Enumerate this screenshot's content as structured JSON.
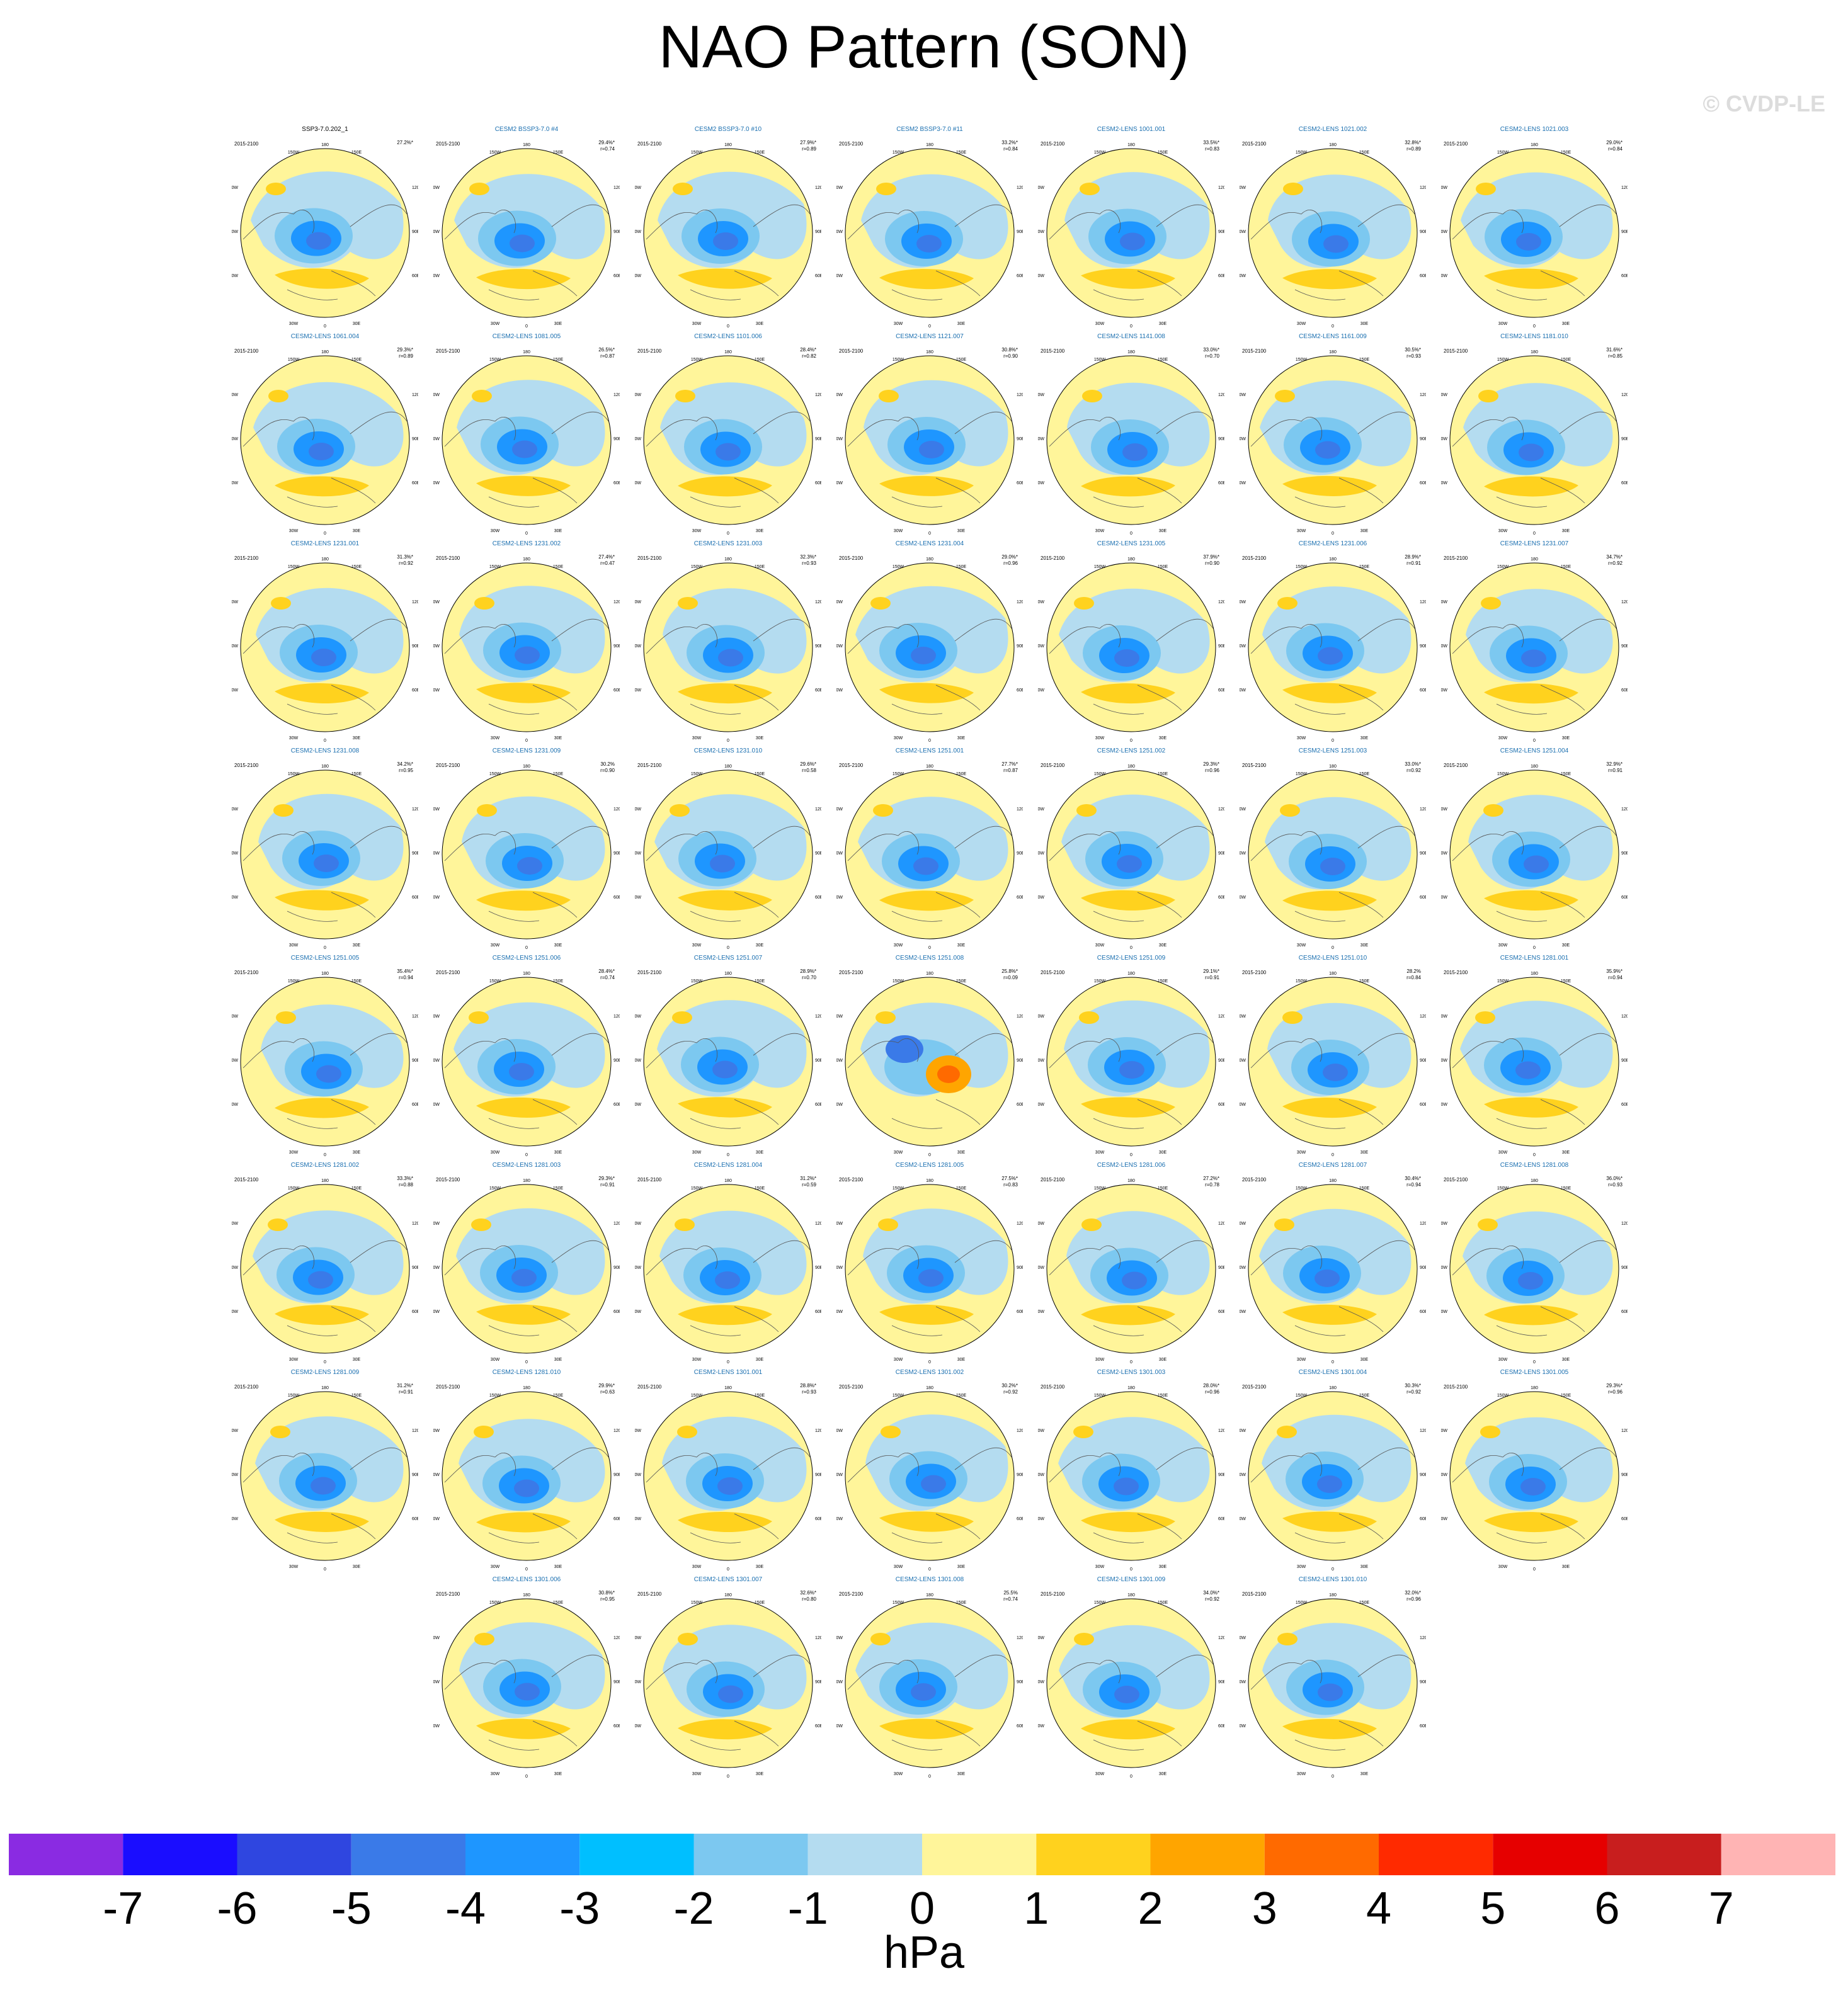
{
  "title": "NAO Pattern (SON)",
  "copyright": "© CVDP-LE",
  "period": "2015-2100",
  "map_labels": [
    "180",
    "150W",
    "150E",
    "120W",
    "120E",
    "90W",
    "90E",
    "60W",
    "60E",
    "30W",
    "30E",
    "0"
  ],
  "panels": [
    {
      "name": "SSP3-7.0.202_1",
      "pct": "27.2%*",
      "r": ""
    },
    {
      "name": "CESM2 BSSP3-7.0 #4",
      "pct": "29.4%*",
      "r": "r=0.74"
    },
    {
      "name": "CESM2 BSSP3-7.0 #10",
      "pct": "27.9%*",
      "r": "r=0.89"
    },
    {
      "name": "CESM2 BSSP3-7.0 #11",
      "pct": "33.2%*",
      "r": "r=0.84"
    },
    {
      "name": "CESM2-LENS 1001.001",
      "pct": "33.5%*",
      "r": "r=0.83"
    },
    {
      "name": "CESM2-LENS 1021.002",
      "pct": "32.8%*",
      "r": "r=0.89"
    },
    {
      "name": "CESM2-LENS 1021.003",
      "pct": "29.0%*",
      "r": "r=0.84"
    },
    {
      "name": "CESM2-LENS 1061.004",
      "pct": "29.3%*",
      "r": "r=0.89"
    },
    {
      "name": "CESM2-LENS 1081.005",
      "pct": "26.5%*",
      "r": "r=0.87"
    },
    {
      "name": "CESM2-LENS 1101.006",
      "pct": "28.4%*",
      "r": "r=0.82"
    },
    {
      "name": "CESM2-LENS 1121.007",
      "pct": "30.8%*",
      "r": "r=0.90"
    },
    {
      "name": "CESM2-LENS 1141.008",
      "pct": "33.0%*",
      "r": "r=0.70"
    },
    {
      "name": "CESM2-LENS 1161.009",
      "pct": "30.5%*",
      "r": "r=0.93"
    },
    {
      "name": "CESM2-LENS 1181.010",
      "pct": "31.6%*",
      "r": "r=0.85"
    },
    {
      "name": "CESM2-LENS 1231.001",
      "pct": "31.3%*",
      "r": "r=0.92"
    },
    {
      "name": "CESM2-LENS 1231.002",
      "pct": "27.4%*",
      "r": "r=0.47"
    },
    {
      "name": "CESM2-LENS 1231.003",
      "pct": "32.3%*",
      "r": "r=0.93"
    },
    {
      "name": "CESM2-LENS 1231.004",
      "pct": "29.0%*",
      "r": "r=0.96"
    },
    {
      "name": "CESM2-LENS 1231.005",
      "pct": "37.9%*",
      "r": "r=0.90"
    },
    {
      "name": "CESM2-LENS 1231.006",
      "pct": "28.9%*",
      "r": "r=0.91"
    },
    {
      "name": "CESM2-LENS 1231.007",
      "pct": "34.7%*",
      "r": "r=0.92"
    },
    {
      "name": "CESM2-LENS 1231.008",
      "pct": "34.2%*",
      "r": "r=0.95"
    },
    {
      "name": "CESM2-LENS 1231.009",
      "pct": "30.2%",
      "r": "r=0.90"
    },
    {
      "name": "CESM2-LENS 1231.010",
      "pct": "29.6%*",
      "r": "r=0.58"
    },
    {
      "name": "CESM2-LENS 1251.001",
      "pct": "27.7%*",
      "r": "r=0.87"
    },
    {
      "name": "CESM2-LENS 1251.002",
      "pct": "29.3%*",
      "r": "r=0.96"
    },
    {
      "name": "CESM2-LENS 1251.003",
      "pct": "33.0%*",
      "r": "r=0.92"
    },
    {
      "name": "CESM2-LENS 1251.004",
      "pct": "32.9%*",
      "r": "r=0.91"
    },
    {
      "name": "CESM2-LENS 1251.005",
      "pct": "35.4%*",
      "r": "r=0.94"
    },
    {
      "name": "CESM2-LENS 1251.006",
      "pct": "28.4%*",
      "r": "r=0.74"
    },
    {
      "name": "CESM2-LENS 1251.007",
      "pct": "28.9%*",
      "r": "r=0.70"
    },
    {
      "name": "CESM2-LENS 1251.008",
      "pct": "25.8%*",
      "r": "r=0.09"
    },
    {
      "name": "CESM2-LENS 1251.009",
      "pct": "29.1%*",
      "r": "r=0.91"
    },
    {
      "name": "CESM2-LENS 1251.010",
      "pct": "28.2%",
      "r": "r=0.84"
    },
    {
      "name": "CESM2-LENS 1281.001",
      "pct": "35.9%*",
      "r": "r=0.94"
    },
    {
      "name": "CESM2-LENS 1281.002",
      "pct": "33.3%*",
      "r": "r=0.88"
    },
    {
      "name": "CESM2-LENS 1281.003",
      "pct": "29.3%*",
      "r": "r=0.91"
    },
    {
      "name": "CESM2-LENS 1281.004",
      "pct": "31.2%*",
      "r": "r=0.59"
    },
    {
      "name": "CESM2-LENS 1281.005",
      "pct": "27.5%*",
      "r": "r=0.83"
    },
    {
      "name": "CESM2-LENS 1281.006",
      "pct": "27.2%*",
      "r": "r=0.78"
    },
    {
      "name": "CESM2-LENS 1281.007",
      "pct": "30.4%*",
      "r": "r=0.94"
    },
    {
      "name": "CESM2-LENS 1281.008",
      "pct": "36.0%*",
      "r": "r=0.93"
    },
    {
      "name": "CESM2-LENS 1281.009",
      "pct": "31.2%*",
      "r": "r=0.91"
    },
    {
      "name": "CESM2-LENS 1281.010",
      "pct": "29.9%*",
      "r": "r=0.63"
    },
    {
      "name": "CESM2-LENS 1301.001",
      "pct": "28.8%*",
      "r": "r=0.93"
    },
    {
      "name": "CESM2-LENS 1301.002",
      "pct": "30.2%*",
      "r": "r=0.92"
    },
    {
      "name": "CESM2-LENS 1301.003",
      "pct": "28.0%*",
      "r": "r=0.96"
    },
    {
      "name": "CESM2-LENS 1301.004",
      "pct": "30.3%*",
      "r": "r=0.92"
    },
    {
      "name": "CESM2-LENS 1301.005",
      "pct": "29.3%*",
      "r": "r=0.96"
    },
    {
      "name": "CESM2-LENS 1301.006",
      "pct": "30.8%*",
      "r": "r=0.95"
    },
    {
      "name": "CESM2-LENS 1301.007",
      "pct": "32.6%*",
      "r": "r=0.80"
    },
    {
      "name": "CESM2-LENS 1301.008",
      "pct": "25.5%",
      "r": "r=0.74"
    },
    {
      "name": "CESM2-LENS 1301.009",
      "pct": "34.0%*",
      "r": "r=0.92"
    },
    {
      "name": "CESM2-LENS 1301.010",
      "pct": "32.0%*",
      "r": "r=0.96"
    }
  ],
  "colorbar": {
    "colors": [
      "#8a2be2",
      "#1a0dff",
      "#2f46e0",
      "#3a7ae8",
      "#1e96ff",
      "#00bfff",
      "#7cc8f0",
      "#b4dcf0",
      "#fff59a",
      "#ffd21e",
      "#ffa500",
      "#ff6a00",
      "#ff2a00",
      "#e60000",
      "#c81e1e",
      "#ffb4b4"
    ],
    "ticks": [
      "-7",
      "-6",
      "-5",
      "-4",
      "-3",
      "-2",
      "-1",
      "0",
      "1",
      "2",
      "3",
      "4",
      "5",
      "6",
      "7"
    ],
    "units": "hPa"
  }
}
